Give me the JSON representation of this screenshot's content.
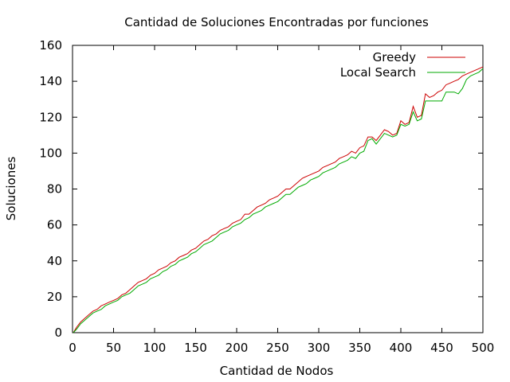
{
  "chart_data": {
    "type": "line",
    "title": "Cantidad de Soluciones Encontradas por funciones",
    "xlabel": "Cantidad de Nodos",
    "ylabel": "Soluciones",
    "xlim": [
      0,
      500
    ],
    "ylim": [
      0,
      160
    ],
    "xticks": [
      0,
      50,
      100,
      150,
      200,
      250,
      300,
      350,
      400,
      450,
      500
    ],
    "yticks": [
      0,
      20,
      40,
      60,
      80,
      100,
      120,
      140,
      160
    ],
    "grid": false,
    "legend_position": "top-right",
    "series": [
      {
        "name": "Greedy",
        "color": "#cc0000",
        "x": [
          1,
          5,
          10,
          15,
          20,
          25,
          30,
          35,
          40,
          45,
          50,
          55,
          60,
          65,
          70,
          75,
          80,
          85,
          90,
          95,
          100,
          105,
          110,
          115,
          120,
          125,
          130,
          135,
          140,
          145,
          150,
          155,
          160,
          165,
          170,
          175,
          180,
          185,
          190,
          195,
          200,
          205,
          210,
          215,
          220,
          225,
          230,
          235,
          240,
          245,
          250,
          255,
          260,
          265,
          270,
          275,
          280,
          285,
          290,
          295,
          300,
          305,
          310,
          315,
          320,
          325,
          330,
          335,
          340,
          345,
          350,
          355,
          360,
          365,
          370,
          375,
          380,
          385,
          390,
          395,
          400,
          405,
          410,
          415,
          420,
          425,
          430,
          435,
          440,
          445,
          450,
          455,
          460,
          465,
          470,
          475,
          480,
          485,
          490,
          495,
          500
        ],
        "y": [
          0,
          3,
          6,
          8,
          10,
          12,
          13,
          15,
          16,
          17,
          18,
          19,
          21,
          22,
          24,
          26,
          28,
          29,
          30,
          32,
          33,
          35,
          36,
          37,
          39,
          40,
          42,
          43,
          44,
          46,
          47,
          49,
          51,
          52,
          54,
          55,
          57,
          58,
          59,
          61,
          62,
          63,
          66,
          66,
          68,
          70,
          71,
          72,
          74,
          75,
          76,
          78,
          80,
          80,
          82,
          84,
          86,
          87,
          88,
          89,
          90,
          92,
          93,
          94,
          95,
          97,
          98,
          99,
          101,
          100,
          103,
          104,
          109,
          109,
          107,
          110,
          113,
          112,
          110,
          111,
          118,
          116,
          117,
          126,
          120,
          121,
          133,
          131,
          132,
          134,
          135,
          138,
          139,
          140,
          141,
          143,
          144,
          145,
          146,
          147,
          148
        ]
      },
      {
        "name": "Local Search",
        "color": "#00aa00",
        "x": [
          1,
          5,
          10,
          15,
          20,
          25,
          30,
          35,
          40,
          45,
          50,
          55,
          60,
          65,
          70,
          75,
          80,
          85,
          90,
          95,
          100,
          105,
          110,
          115,
          120,
          125,
          130,
          135,
          140,
          145,
          150,
          155,
          160,
          165,
          170,
          175,
          180,
          185,
          190,
          195,
          200,
          205,
          210,
          215,
          220,
          225,
          230,
          235,
          240,
          245,
          250,
          255,
          260,
          265,
          270,
          275,
          280,
          285,
          290,
          295,
          300,
          305,
          310,
          315,
          320,
          325,
          330,
          335,
          340,
          345,
          350,
          355,
          360,
          365,
          370,
          375,
          380,
          385,
          390,
          395,
          400,
          405,
          410,
          415,
          420,
          425,
          430,
          435,
          440,
          445,
          450,
          455,
          460,
          465,
          470,
          475,
          480,
          485,
          490,
          495,
          500
        ],
        "y": [
          0,
          2,
          5,
          7,
          9,
          11,
          12,
          13,
          15,
          16,
          17,
          18,
          20,
          21,
          22,
          24,
          26,
          27,
          28,
          30,
          31,
          32,
          34,
          35,
          37,
          38,
          40,
          41,
          42,
          44,
          45,
          47,
          49,
          50,
          51,
          53,
          55,
          56,
          57,
          59,
          60,
          61,
          63,
          64,
          66,
          67,
          68,
          70,
          71,
          72,
          73,
          75,
          77,
          77,
          79,
          81,
          82,
          83,
          85,
          86,
          87,
          89,
          90,
          91,
          92,
          94,
          95,
          96,
          98,
          97,
          100,
          101,
          107,
          108,
          105,
          108,
          111,
          110,
          109,
          110,
          116,
          115,
          116,
          123,
          118,
          119,
          129,
          129,
          129,
          129,
          129,
          134,
          134,
          134,
          133,
          136,
          141,
          143,
          144,
          145,
          147
        ]
      }
    ]
  }
}
